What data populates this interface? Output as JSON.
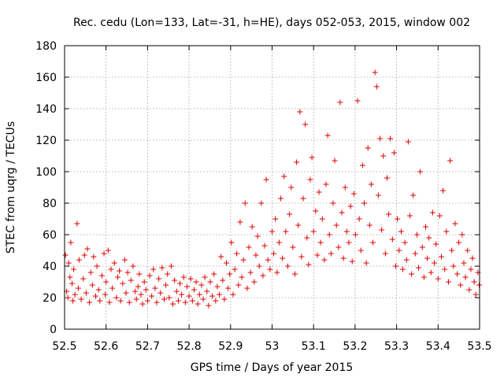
{
  "chart_data": {
    "type": "scatter",
    "title": "Rec. cedu (Lon=133, Lat=-31, h=HE), days 052-053, 2015, window 002",
    "xlabel": "GPS time / Days of year 2015",
    "ylabel": "STEC from uqrg / TECUs",
    "xlim": [
      52.5,
      53.5
    ],
    "ylim": [
      0,
      180
    ],
    "x_ticks": [
      "52.5",
      "52.6",
      "52.7",
      "52.8",
      "52.9",
      "53",
      "53.1",
      "53.2",
      "53.3",
      "53.4",
      "53.5"
    ],
    "y_ticks": [
      "0",
      "20",
      "40",
      "60",
      "80",
      "100",
      "120",
      "140",
      "160",
      "180"
    ],
    "grid": true,
    "marker": "+",
    "marker_color": "#e00000",
    "series": [
      {
        "name": "STEC",
        "points": [
          [
            52.502,
            47
          ],
          [
            52.505,
            24
          ],
          [
            52.508,
            20
          ],
          [
            52.51,
            42
          ],
          [
            52.513,
            33
          ],
          [
            52.515,
            55
          ],
          [
            52.518,
            29
          ],
          [
            52.52,
            18
          ],
          [
            52.522,
            38
          ],
          [
            52.525,
            22
          ],
          [
            52.53,
            67
          ],
          [
            52.533,
            26
          ],
          [
            52.535,
            44
          ],
          [
            52.54,
            19
          ],
          [
            52.545,
            32
          ],
          [
            52.548,
            47
          ],
          [
            52.552,
            23
          ],
          [
            52.555,
            51
          ],
          [
            52.56,
            17
          ],
          [
            52.563,
            36
          ],
          [
            52.567,
            28
          ],
          [
            52.57,
            46
          ],
          [
            52.575,
            21
          ],
          [
            52.578,
            40
          ],
          [
            52.582,
            25
          ],
          [
            52.585,
            18
          ],
          [
            52.59,
            34
          ],
          [
            52.595,
            48
          ],
          [
            52.598,
            22
          ],
          [
            52.6,
            30
          ],
          [
            52.605,
            50
          ],
          [
            52.608,
            17
          ],
          [
            52.612,
            38
          ],
          [
            52.615,
            26
          ],
          [
            52.62,
            42
          ],
          [
            52.625,
            20
          ],
          [
            52.628,
            33
          ],
          [
            52.632,
            37
          ],
          [
            52.635,
            18
          ],
          [
            52.64,
            29
          ],
          [
            52.645,
            44
          ],
          [
            52.648,
            23
          ],
          [
            52.652,
            36
          ],
          [
            52.656,
            17
          ],
          [
            52.66,
            31
          ],
          [
            52.665,
            40
          ],
          [
            52.67,
            24
          ],
          [
            52.673,
            19
          ],
          [
            52.677,
            27
          ],
          [
            52.68,
            35
          ],
          [
            52.684,
            22
          ],
          [
            52.688,
            16
          ],
          [
            52.692,
            30
          ],
          [
            52.696,
            25
          ],
          [
            52.7,
            18
          ],
          [
            52.705,
            34
          ],
          [
            52.71,
            21
          ],
          [
            52.714,
            38
          ],
          [
            52.718,
            26
          ],
          [
            52.722,
            17
          ],
          [
            52.727,
            32
          ],
          [
            52.731,
            23
          ],
          [
            52.735,
            39
          ],
          [
            52.74,
            19
          ],
          [
            52.744,
            28
          ],
          [
            52.748,
            35
          ],
          [
            52.752,
            20
          ],
          [
            52.757,
            40
          ],
          [
            52.761,
            16
          ],
          [
            52.765,
            31
          ],
          [
            52.77,
            24
          ],
          [
            52.774,
            18
          ],
          [
            52.778,
            29
          ],
          [
            52.782,
            22
          ],
          [
            52.787,
            33
          ],
          [
            52.791,
            17
          ],
          [
            52.795,
            27
          ],
          [
            52.8,
            21
          ],
          [
            52.804,
            32
          ],
          [
            52.808,
            18
          ],
          [
            52.812,
            25
          ],
          [
            52.817,
            30
          ],
          [
            52.821,
            16
          ],
          [
            52.825,
            22
          ],
          [
            52.83,
            28
          ],
          [
            52.834,
            19
          ],
          [
            52.838,
            33
          ],
          [
            52.843,
            24
          ],
          [
            52.847,
            15
          ],
          [
            52.851,
            30
          ],
          [
            52.856,
            21
          ],
          [
            52.86,
            35
          ],
          [
            52.864,
            18
          ],
          [
            52.868,
            27
          ],
          [
            52.873,
            22
          ],
          [
            52.877,
            46
          ],
          [
            52.881,
            31
          ],
          [
            52.885,
            19
          ],
          [
            52.89,
            42
          ],
          [
            52.894,
            26
          ],
          [
            52.898,
            35
          ],
          [
            52.902,
            55
          ],
          [
            52.906,
            22
          ],
          [
            52.91,
            38
          ],
          [
            52.915,
            48
          ],
          [
            52.919,
            28
          ],
          [
            52.923,
            68
          ],
          [
            52.927,
            33
          ],
          [
            52.931,
            44
          ],
          [
            52.935,
            80
          ],
          [
            52.94,
            26
          ],
          [
            52.944,
            52
          ],
          [
            52.948,
            36
          ],
          [
            52.952,
            65
          ],
          [
            52.957,
            30
          ],
          [
            52.961,
            47
          ],
          [
            52.965,
            59
          ],
          [
            52.969,
            40
          ],
          [
            52.974,
            80
          ],
          [
            52.978,
            34
          ],
          [
            52.982,
            53
          ],
          [
            52.986,
            95
          ],
          [
            52.99,
            44
          ],
          [
            52.995,
            38
          ],
          [
            53.0,
            62
          ],
          [
            53.004,
            48
          ],
          [
            53.008,
            70
          ],
          [
            53.012,
            36
          ],
          [
            53.017,
            55
          ],
          [
            53.021,
            83
          ],
          [
            53.025,
            45
          ],
          [
            53.029,
            97
          ],
          [
            53.033,
            62
          ],
          [
            53.038,
            40
          ],
          [
            53.042,
            73
          ],
          [
            53.046,
            90
          ],
          [
            53.05,
            52
          ],
          [
            53.055,
            35
          ],
          [
            53.059,
            106
          ],
          [
            53.063,
            66
          ],
          [
            53.067,
            138
          ],
          [
            53.071,
            46
          ],
          [
            53.075,
            83
          ],
          [
            53.08,
            130
          ],
          [
            53.084,
            58
          ],
          [
            53.088,
            41
          ],
          [
            53.092,
            95
          ],
          [
            53.096,
            109
          ],
          [
            53.1,
            62
          ],
          [
            53.105,
            75
          ],
          [
            53.109,
            47
          ],
          [
            53.113,
            87
          ],
          [
            53.117,
            55
          ],
          [
            53.121,
            70
          ],
          [
            53.126,
            44
          ],
          [
            53.13,
            92
          ],
          [
            53.134,
            123
          ],
          [
            53.138,
            60
          ],
          [
            53.142,
            48
          ],
          [
            53.147,
            80
          ],
          [
            53.151,
            107
          ],
          [
            53.155,
            66
          ],
          [
            53.16,
            52
          ],
          [
            53.164,
            144
          ],
          [
            53.168,
            74
          ],
          [
            53.172,
            45
          ],
          [
            53.176,
            90
          ],
          [
            53.18,
            62
          ],
          [
            53.185,
            55
          ],
          [
            53.189,
            78
          ],
          [
            53.193,
            43
          ],
          [
            53.197,
            86
          ],
          [
            53.201,
            60
          ],
          [
            53.206,
            145
          ],
          [
            53.21,
            70
          ],
          [
            53.214,
            50
          ],
          [
            53.218,
            104
          ],
          [
            53.222,
            80
          ],
          [
            53.227,
            42
          ],
          [
            53.231,
            115
          ],
          [
            53.235,
            66
          ],
          [
            53.239,
            92
          ],
          [
            53.243,
            55
          ],
          [
            53.248,
            163
          ],
          [
            53.252,
            154
          ],
          [
            53.256,
            85
          ],
          [
            53.26,
            121
          ],
          [
            53.264,
            63
          ],
          [
            53.268,
            110
          ],
          [
            53.273,
            48
          ],
          [
            53.277,
            96
          ],
          [
            53.281,
            73
          ],
          [
            53.285,
            121
          ],
          [
            53.29,
            57
          ],
          [
            53.294,
            112
          ],
          [
            53.298,
            40
          ],
          [
            53.302,
            70
          ],
          [
            53.306,
            50
          ],
          [
            53.311,
            62
          ],
          [
            53.315,
            38
          ],
          [
            53.32,
            55
          ],
          [
            53.324,
            44
          ],
          [
            53.328,
            119
          ],
          [
            53.332,
            72
          ],
          [
            53.336,
            35
          ],
          [
            53.34,
            85
          ],
          [
            53.345,
            48
          ],
          [
            53.349,
            60
          ],
          [
            53.353,
            39
          ],
          [
            53.357,
            100
          ],
          [
            53.362,
            52
          ],
          [
            53.366,
            33
          ],
          [
            53.37,
            65
          ],
          [
            53.374,
            45
          ],
          [
            53.378,
            58
          ],
          [
            53.383,
            36
          ],
          [
            53.387,
            74
          ],
          [
            53.391,
            42
          ],
          [
            53.395,
            54
          ],
          [
            53.4,
            32
          ],
          [
            53.404,
            72
          ],
          [
            53.408,
            46
          ],
          [
            53.412,
            88
          ],
          [
            53.416,
            38
          ],
          [
            53.42,
            62
          ],
          [
            53.425,
            30
          ],
          [
            53.429,
            107
          ],
          [
            53.433,
            50
          ],
          [
            53.437,
            40
          ],
          [
            53.441,
            67
          ],
          [
            53.446,
            35
          ],
          [
            53.45,
            55
          ],
          [
            53.454,
            28
          ],
          [
            53.458,
            60
          ],
          [
            53.462,
            42
          ],
          [
            53.466,
            33
          ],
          [
            53.471,
            50
          ],
          [
            53.475,
            25
          ],
          [
            53.479,
            38
          ],
          [
            53.483,
            45
          ],
          [
            53.487,
            30
          ],
          [
            53.491,
            22
          ],
          [
            53.496,
            36
          ],
          [
            53.499,
            28
          ]
        ]
      }
    ]
  }
}
